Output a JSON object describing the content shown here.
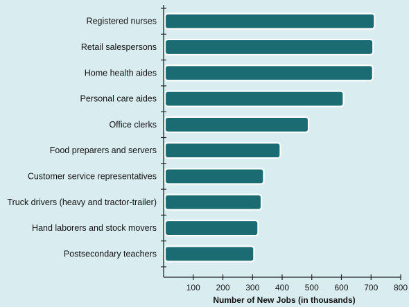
{
  "colors": {
    "background": "#d9edf0",
    "bar_fill": "#1a6b72",
    "bar_outline": "#ffffff",
    "axis": "#222222"
  },
  "chart_data": {
    "type": "bar",
    "orientation": "horizontal",
    "categories": [
      "Registered nurses",
      "Retail salespersons",
      "Home health aides",
      "Personal care aides",
      "Office clerks",
      "Food preparers and servers",
      "Customer service representatives",
      "Truck drivers (heavy and tractor-trailer)",
      "Hand laborers and stock movers",
      "Postsecondary teachers"
    ],
    "values": [
      712,
      707,
      706,
      607,
      489,
      394,
      338,
      330,
      319,
      305
    ],
    "title": "",
    "xlabel": "Number of New Jobs (in thousands)",
    "ylabel": "",
    "xlim": [
      0,
      800
    ],
    "xticks": [
      100,
      200,
      300,
      400,
      500,
      600,
      700,
      800
    ],
    "grid": false,
    "legend": "none"
  }
}
